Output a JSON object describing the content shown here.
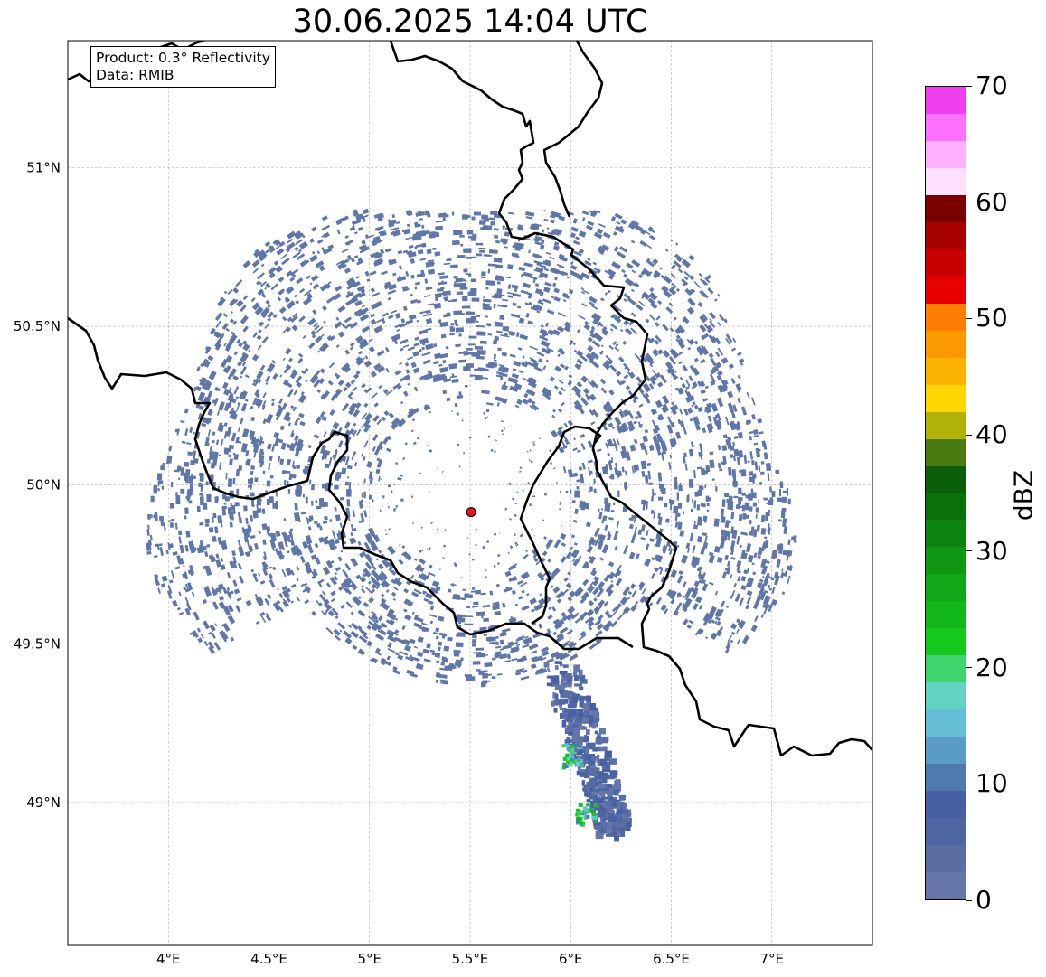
{
  "title": "30.06.2025 14:04 UTC",
  "info": {
    "product": "Product: 0.3° Reflectivity",
    "data": "Data: RMIB"
  },
  "map": {
    "lon_range": [
      3.5,
      7.5
    ],
    "lat_range": [
      48.55,
      51.4
    ],
    "x_ticks": [
      {
        "value": 4.0,
        "label": "4°E"
      },
      {
        "value": 4.5,
        "label": "4.5°E"
      },
      {
        "value": 5.0,
        "label": "5°E"
      },
      {
        "value": 5.5,
        "label": "5.5°E"
      },
      {
        "value": 6.0,
        "label": "6°E"
      },
      {
        "value": 6.5,
        "label": "6.5°E"
      },
      {
        "value": 7.0,
        "label": "7°E"
      }
    ],
    "y_ticks": [
      {
        "value": 49.0,
        "label": "49°N"
      },
      {
        "value": 49.5,
        "label": "49.5°N"
      },
      {
        "value": 50.0,
        "label": "50°N"
      },
      {
        "value": 50.5,
        "label": "50.5°N"
      },
      {
        "value": 51.0,
        "label": "51°N"
      }
    ],
    "radar_site": {
      "lon": 5.505,
      "lat": 49.915,
      "color": "#e8161b"
    },
    "grid": true,
    "border_color": "#000000",
    "echo_base_color": "#5f76a6"
  },
  "colorbar": {
    "label": "dBZ",
    "min": 0,
    "max": 70,
    "step": 2.5,
    "ticks": [
      {
        "value": 0,
        "label": "0"
      },
      {
        "value": 10,
        "label": "10"
      },
      {
        "value": 20,
        "label": "20"
      },
      {
        "value": 30,
        "label": "30"
      },
      {
        "value": 40,
        "label": "40"
      },
      {
        "value": 50,
        "label": "50"
      },
      {
        "value": 60,
        "label": "60"
      },
      {
        "value": 70,
        "label": "70"
      }
    ],
    "colors": [
      "#6676a8",
      "#5a6ea4",
      "#4e66a2",
      "#4760a4",
      "#4f7aae",
      "#5a9cc6",
      "#66bed6",
      "#62d2c2",
      "#3fd46e",
      "#14c81e",
      "#12b81a",
      "#10a818",
      "#0e9614",
      "#0c8210",
      "#0a700c",
      "#0a5e0a",
      "#4a7a12",
      "#b0b20a",
      "#fed600",
      "#fcb200",
      "#fc9800",
      "#fc7e00",
      "#e80000",
      "#c80000",
      "#a60000",
      "#7a0000",
      "#ffe0ff",
      "#ffb0ff",
      "#ff70ff",
      "#ee40ee"
    ]
  }
}
